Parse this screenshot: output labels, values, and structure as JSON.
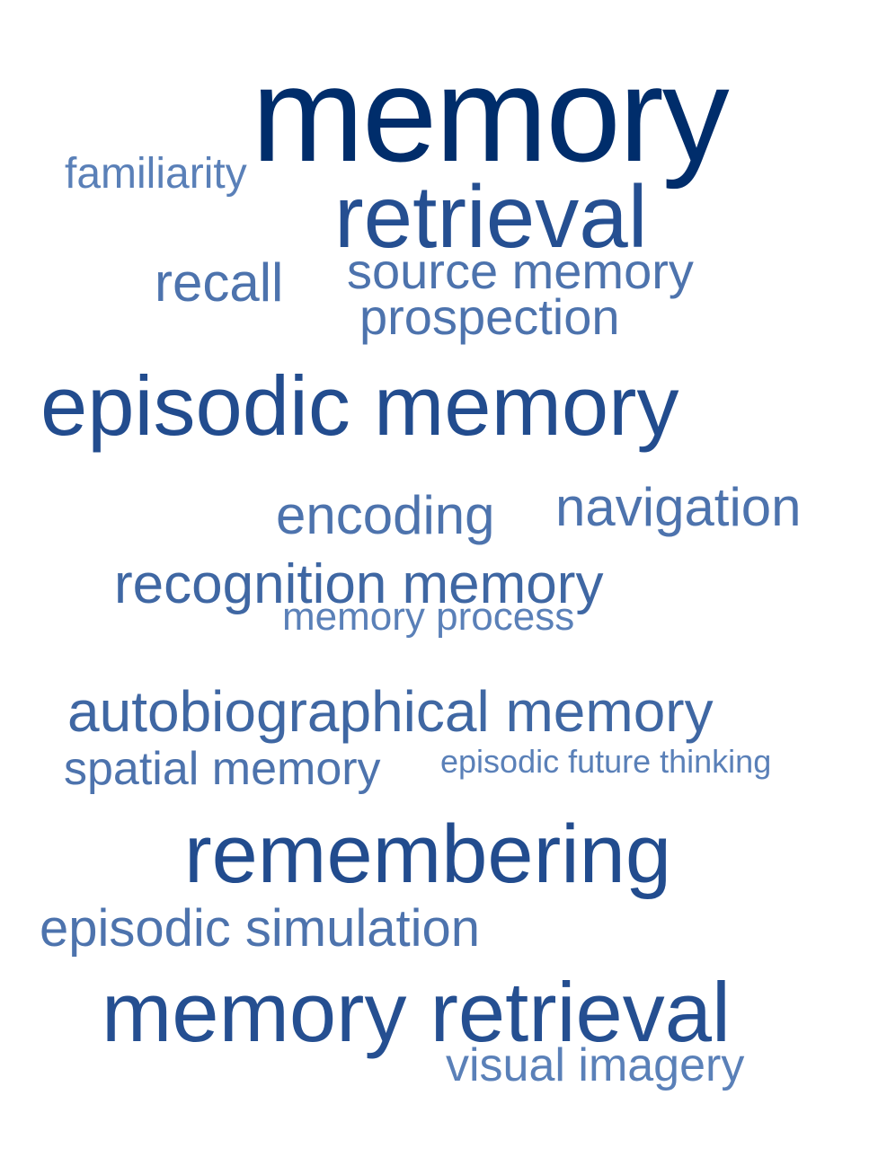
{
  "word_cloud": {
    "words": [
      {
        "text": "memory",
        "color": "#002d6b"
      },
      {
        "text": "familiarity",
        "color": "#5a80b8"
      },
      {
        "text": "retrieval",
        "color": "#254f91"
      },
      {
        "text": "recall",
        "color": "#4d73ad"
      },
      {
        "text": "source memory",
        "color": "#4d73ad"
      },
      {
        "text": "prospection",
        "color": "#4d73ad"
      },
      {
        "text": "episodic memory",
        "color": "#224c8e"
      },
      {
        "text": "encoding",
        "color": "#4d73ad"
      },
      {
        "text": "navigation",
        "color": "#4d73ad"
      },
      {
        "text": "recognition memory",
        "color": "#3f67a3"
      },
      {
        "text": "memory process",
        "color": "#5a80b8"
      },
      {
        "text": "autobiographical memory",
        "color": "#3f67a3"
      },
      {
        "text": "spatial memory",
        "color": "#4d73ad"
      },
      {
        "text": "episodic future thinking",
        "color": "#5a80b8"
      },
      {
        "text": "remembering",
        "color": "#224c8e"
      },
      {
        "text": "episodic simulation",
        "color": "#4d73ad"
      },
      {
        "text": "memory retrieval",
        "color": "#254f91"
      },
      {
        "text": "visual imagery",
        "color": "#5a80b8"
      }
    ]
  }
}
